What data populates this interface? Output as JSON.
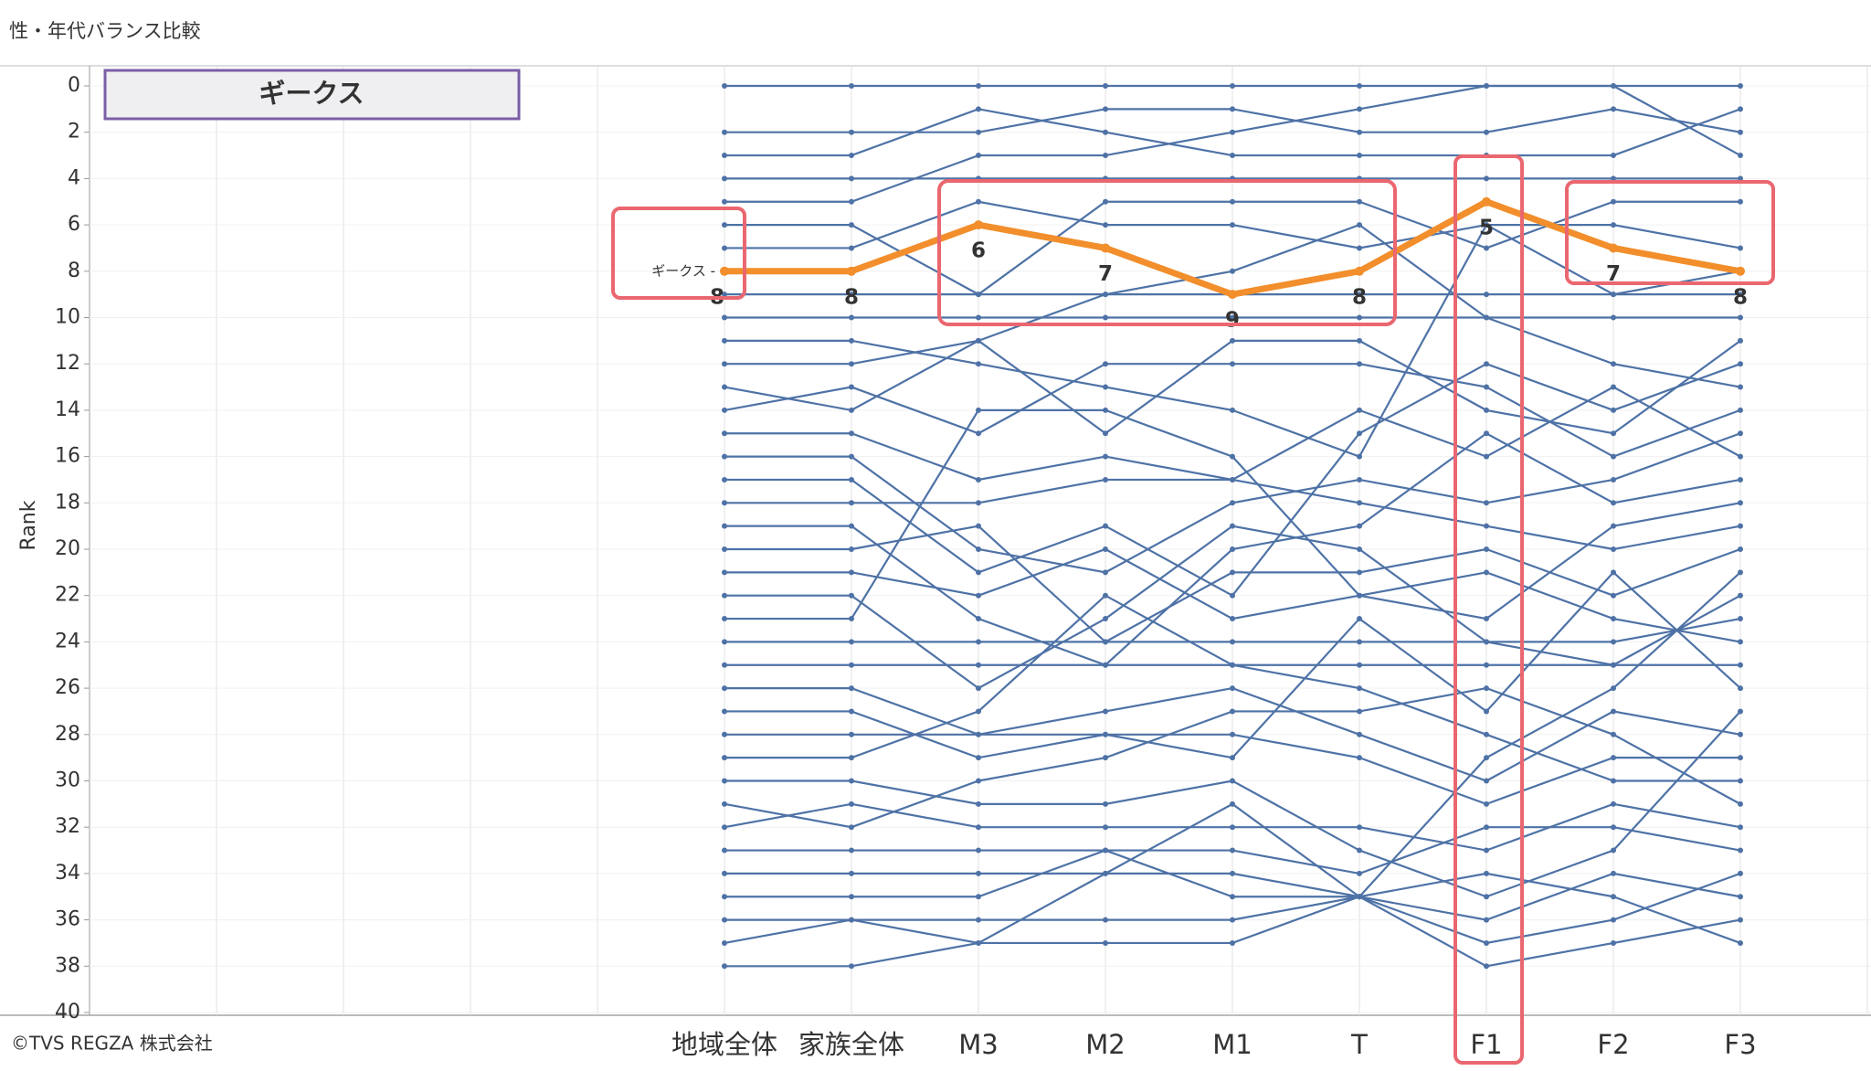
{
  "header": {
    "title": "性・年代バランス比較",
    "copyright": "©TVS REGZA 株式会社"
  },
  "chart_data": {
    "type": "line",
    "y_label": "Rank",
    "legend_title": "ギークス",
    "start_label": "ギークス -",
    "categories": [
      "地域全体",
      "家族全体",
      "M3",
      "M2",
      "M1",
      "T",
      "F1",
      "F2",
      "F3"
    ],
    "ylim": [
      0,
      40
    ],
    "yticks": [
      0,
      2,
      4,
      6,
      8,
      10,
      12,
      14,
      16,
      18,
      20,
      22,
      24,
      26,
      28,
      30,
      32,
      34,
      36,
      38,
      40
    ],
    "y_inverted": true,
    "grid": true,
    "highlight": {
      "name": "ギークス",
      "color": "#f28e2b",
      "values": [
        8,
        8,
        6,
        7,
        9,
        8,
        5,
        7,
        8
      ]
    },
    "series_color": "#4e72a6",
    "series": [
      {
        "values": [
          0,
          0,
          0,
          0,
          0,
          0,
          0,
          0,
          0
        ]
      },
      {
        "values": [
          2,
          2,
          2,
          1,
          1,
          2,
          2,
          1,
          2
        ]
      },
      {
        "values": [
          3,
          3,
          1,
          2,
          3,
          3,
          3,
          3,
          1
        ]
      },
      {
        "values": [
          4,
          4,
          4,
          4,
          4,
          4,
          4,
          4,
          4
        ]
      },
      {
        "values": [
          5,
          5,
          3,
          3,
          2,
          1,
          0,
          0,
          3
        ]
      },
      {
        "values": [
          6,
          6,
          9,
          5,
          5,
          5,
          7,
          5,
          5
        ]
      },
      {
        "values": [
          7,
          7,
          5,
          6,
          6,
          7,
          6,
          6,
          7
        ]
      },
      {
        "values": [
          9,
          9,
          9,
          9,
          9,
          9,
          9,
          9,
          9
        ]
      },
      {
        "values": [
          10,
          10,
          10,
          10,
          10,
          10,
          10,
          10,
          10
        ]
      },
      {
        "values": [
          11,
          11,
          12,
          13,
          14,
          16,
          6,
          9,
          8
        ]
      },
      {
        "values": [
          12,
          12,
          11,
          9,
          8,
          6,
          10,
          12,
          13
        ]
      },
      {
        "values": [
          13,
          14,
          11,
          15,
          11,
          11,
          14,
          15,
          11
        ]
      },
      {
        "values": [
          14,
          13,
          15,
          12,
          12,
          12,
          13,
          16,
          14
        ]
      },
      {
        "values": [
          15,
          15,
          17,
          16,
          17,
          14,
          16,
          13,
          16
        ]
      },
      {
        "values": [
          16,
          16,
          20,
          21,
          18,
          17,
          18,
          17,
          15
        ]
      },
      {
        "values": [
          17,
          17,
          21,
          19,
          22,
          15,
          12,
          14,
          12
        ]
      },
      {
        "values": [
          18,
          18,
          18,
          17,
          17,
          18,
          19,
          20,
          19
        ]
      },
      {
        "values": [
          19,
          19,
          23,
          25,
          20,
          19,
          15,
          18,
          17
        ]
      },
      {
        "values": [
          20,
          20,
          19,
          24,
          21,
          21,
          20,
          22,
          20
        ]
      },
      {
        "values": [
          21,
          21,
          22,
          20,
          23,
          22,
          21,
          23,
          24
        ]
      },
      {
        "values": [
          22,
          22,
          26,
          23,
          19,
          20,
          24,
          25,
          22
        ]
      },
      {
        "values": [
          23,
          23,
          14,
          14,
          16,
          22,
          23,
          19,
          18
        ]
      },
      {
        "values": [
          24,
          24,
          24,
          24,
          24,
          24,
          24,
          24,
          23
        ]
      },
      {
        "values": [
          25,
          25,
          25,
          25,
          25,
          25,
          25,
          25,
          25
        ]
      },
      {
        "values": [
          26,
          26,
          28,
          27,
          26,
          28,
          30,
          27,
          28
        ]
      },
      {
        "values": [
          27,
          27,
          29,
          28,
          29,
          23,
          27,
          21,
          26
        ]
      },
      {
        "values": [
          28,
          28,
          28,
          28,
          28,
          29,
          31,
          29,
          29
        ]
      },
      {
        "values": [
          29,
          29,
          27,
          22,
          25,
          26,
          28,
          30,
          30
        ]
      },
      {
        "values": [
          30,
          30,
          31,
          31,
          30,
          33,
          35,
          33,
          27
        ]
      },
      {
        "values": [
          31,
          32,
          30,
          29,
          27,
          27,
          26,
          28,
          31
        ]
      },
      {
        "values": [
          32,
          31,
          32,
          32,
          32,
          32,
          33,
          31,
          32
        ]
      },
      {
        "values": [
          33,
          33,
          33,
          33,
          33,
          34,
          32,
          32,
          33
        ]
      },
      {
        "values": [
          34,
          34,
          34,
          34,
          34,
          35,
          29,
          26,
          21
        ]
      },
      {
        "values": [
          35,
          35,
          35,
          33,
          35,
          35,
          36,
          34,
          35
        ]
      },
      {
        "values": [
          36,
          36,
          36,
          36,
          36,
          35,
          37,
          36,
          34
        ]
      },
      {
        "values": [
          37,
          36,
          37,
          37,
          37,
          35,
          38,
          37,
          36
        ]
      },
      {
        "values": [
          38,
          38,
          37,
          34,
          31,
          35,
          34,
          35,
          37
        ]
      }
    ]
  }
}
